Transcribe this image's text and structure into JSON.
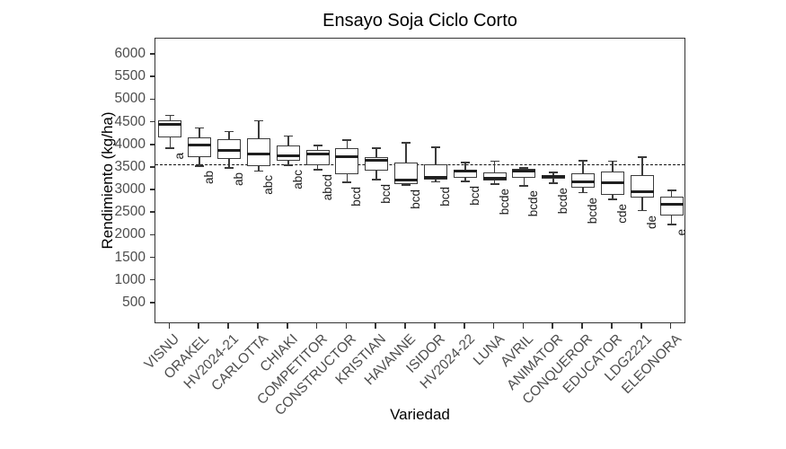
{
  "chart_data": {
    "type": "boxplot",
    "title": "Ensayo Soja Ciclo Corto",
    "xlabel": "Variedad",
    "ylabel": "Rendimiento (kg/ha)",
    "ylim": [
      40,
      6360
    ],
    "yticks": [
      500,
      1000,
      1500,
      2000,
      2500,
      3000,
      3500,
      4000,
      4500,
      5000,
      5500,
      6000
    ],
    "grid": false,
    "legend": "none",
    "reference_line": {
      "value": 3550,
      "style": "dashed",
      "color": "#111111"
    },
    "categories": [
      "VISNU",
      "ORAKEL",
      "HV2024-21",
      "CARLOTTA",
      "CHIAKI",
      "COMPETITOR",
      "CONSTRUCTOR",
      "KRISTIAN",
      "HAVANNE",
      "ISIDOR",
      "HV2024-22",
      "LUNA",
      "AVRIL",
      "ANIMATOR",
      "CONQUEROR",
      "EDUCATOR",
      "LDG2221",
      "ELEONORA"
    ],
    "series": [
      {
        "name": "VISNU",
        "letter": "a",
        "whisker_low": 3940,
        "q1": 4180,
        "median": 4460,
        "q3": 4560,
        "whisker_high": 4660
      },
      {
        "name": "ORAKEL",
        "letter": "ab",
        "whisker_low": 3540,
        "q1": 3740,
        "median": 4000,
        "q3": 4180,
        "whisker_high": 4380
      },
      {
        "name": "HV2024-21",
        "letter": "ab",
        "whisker_low": 3500,
        "q1": 3700,
        "median": 3880,
        "q3": 4140,
        "whisker_high": 4300
      },
      {
        "name": "CARLOTTA",
        "letter": "abc",
        "whisker_low": 3430,
        "q1": 3540,
        "median": 3800,
        "q3": 4160,
        "whisker_high": 4540
      },
      {
        "name": "CHIAKI",
        "letter": "abc",
        "whisker_low": 3560,
        "q1": 3660,
        "median": 3770,
        "q3": 4000,
        "whisker_high": 4200
      },
      {
        "name": "COMPETITOR",
        "letter": "abcd",
        "whisker_low": 3460,
        "q1": 3560,
        "median": 3810,
        "q3": 3890,
        "whisker_high": 3990
      },
      {
        "name": "CONSTRUCTOR",
        "letter": "bcd",
        "whisker_low": 3180,
        "q1": 3360,
        "median": 3740,
        "q3": 3930,
        "whisker_high": 4110
      },
      {
        "name": "KRISTIAN",
        "letter": "bcd",
        "whisker_low": 3240,
        "q1": 3430,
        "median": 3670,
        "q3": 3730,
        "whisker_high": 3940
      },
      {
        "name": "HAVANNE",
        "letter": "bcd",
        "whisker_low": 3120,
        "q1": 3150,
        "median": 3220,
        "q3": 3620,
        "whisker_high": 4050
      },
      {
        "name": "ISIDOR",
        "letter": "bcd",
        "whisker_low": 3190,
        "q1": 3230,
        "median": 3280,
        "q3": 3580,
        "whisker_high": 3960
      },
      {
        "name": "HV2024-22",
        "letter": "bcd",
        "whisker_low": 3200,
        "q1": 3270,
        "median": 3420,
        "q3": 3450,
        "whisker_high": 3620
      },
      {
        "name": "LUNA",
        "letter": "bcde",
        "whisker_low": 3140,
        "q1": 3210,
        "median": 3260,
        "q3": 3400,
        "whisker_high": 3650
      },
      {
        "name": "AVRIL",
        "letter": "bcde",
        "whisker_low": 3100,
        "q1": 3270,
        "median": 3430,
        "q3": 3470,
        "whisker_high": 3500
      },
      {
        "name": "ANIMATOR",
        "letter": "bcde",
        "whisker_low": 3160,
        "q1": 3250,
        "median": 3300,
        "q3": 3340,
        "whisker_high": 3400
      },
      {
        "name": "CONQUEROR",
        "letter": "bcde",
        "whisker_low": 2950,
        "q1": 3060,
        "median": 3190,
        "q3": 3380,
        "whisker_high": 3660
      },
      {
        "name": "EDUCATOR",
        "letter": "cde",
        "whisker_low": 2800,
        "q1": 2910,
        "median": 3170,
        "q3": 3420,
        "whisker_high": 3650
      },
      {
        "name": "LDG2221",
        "letter": "de",
        "whisker_low": 2550,
        "q1": 2850,
        "median": 2970,
        "q3": 3340,
        "whisker_high": 3740
      },
      {
        "name": "ELEONORA",
        "letter": "e",
        "whisker_low": 2250,
        "q1": 2450,
        "median": 2700,
        "q3": 2870,
        "whisker_high": 3000
      }
    ]
  },
  "colors": {
    "background": "#ffffff",
    "box_stroke": "#3b3b3b",
    "median": "#1f1f1f",
    "axis_text": "#4d4d4d",
    "panel_border": "#333333",
    "reference_line": "#111111"
  }
}
